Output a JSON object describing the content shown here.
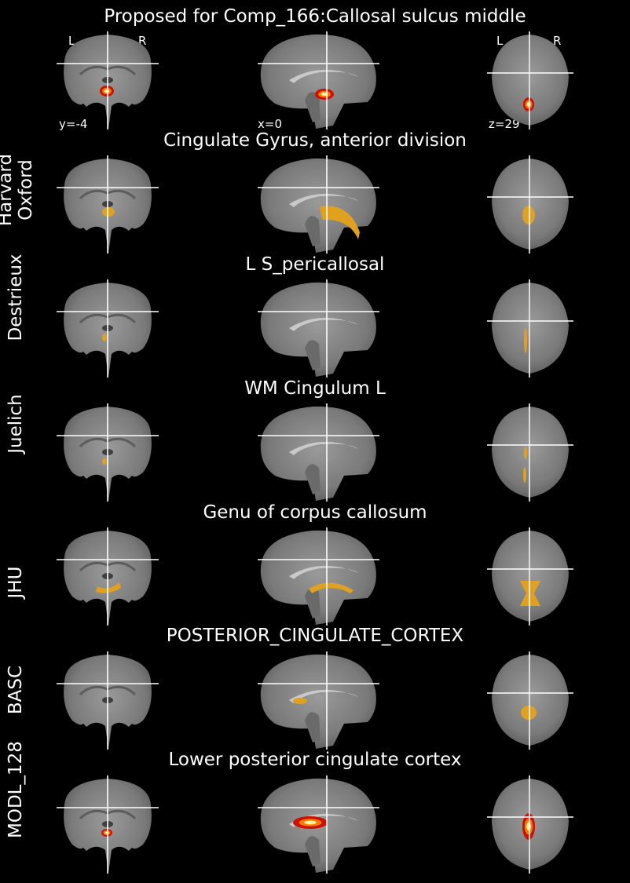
{
  "figure": {
    "title": "Proposed for Comp_166:Callosal sulcus middle",
    "orientation": {
      "left": "L",
      "right": "R"
    },
    "coords": {
      "coronal": "y=-4",
      "sagittal": "x=0",
      "axial": "z=29"
    }
  },
  "rows": [
    {
      "atlas": "",
      "title": "Proposed for Comp_166:Callosal sulcus middle",
      "overlay": "hot"
    },
    {
      "atlas": "Harvard\nOxford",
      "title": "Cingulate Gyrus, anterior division",
      "overlay": "gold"
    },
    {
      "atlas": "Destrieux",
      "title": "L S_pericallosal",
      "overlay": "gold"
    },
    {
      "atlas": "Juelich",
      "title": "WM Cingulum L",
      "overlay": "gold"
    },
    {
      "atlas": "JHU",
      "title": "Genu of corpus callosum",
      "overlay": "gold"
    },
    {
      "atlas": "BASC",
      "title": "POSTERIOR_CINGULATE_CORTEX",
      "overlay": "gold"
    },
    {
      "atlas": "MODL_128",
      "title": "Lower posterior cingulate cortex",
      "overlay": "hot"
    }
  ],
  "colors": {
    "background": "#000000",
    "overlay_gold": "#e0a020",
    "overlay_hot_outer": "#cc1100",
    "overlay_hot_inner": "#fff2a0",
    "crosshair": "#ffffff"
  }
}
